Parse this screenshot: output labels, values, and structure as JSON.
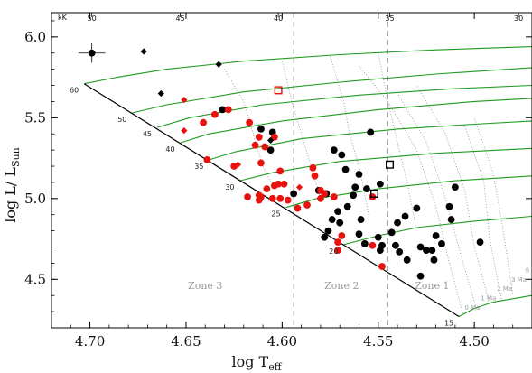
{
  "chart_data": {
    "type": "scatter",
    "xlabel": "log T",
    "xlabel_sub": "eff",
    "ylabel": "log L/ L",
    "ylabel_sub": "Sun",
    "xlim": [
      4.72,
      4.47
    ],
    "ylim": [
      4.2,
      6.15
    ],
    "x_ticks": [
      "4.70",
      "4.65",
      "4.60",
      "4.55",
      "4.50"
    ],
    "x_tick_values": [
      4.7,
      4.65,
      4.6,
      4.55,
      4.5
    ],
    "y_ticks": [
      "4.5",
      "5.0",
      "5.5",
      "6.0"
    ],
    "y_tick_values": [
      4.5,
      5.0,
      5.5,
      6.0
    ],
    "top_axis": {
      "unit_label": "kK",
      "ticks": [
        "50",
        "45",
        "40",
        "35",
        "30"
      ],
      "tick_values": [
        4.699,
        4.653,
        4.602,
        4.544,
        4.477
      ]
    },
    "zone_boundaries_x": [
      4.594,
      4.545
    ],
    "zones": [
      {
        "label": "Zone 3",
        "x": 4.64,
        "y": 4.44
      },
      {
        "label": "Zone 2",
        "x": 4.569,
        "y": 4.44
      },
      {
        "label": "Zone 1",
        "x": 4.522,
        "y": 4.44
      }
    ],
    "zams": [
      [
        4.703,
        5.71
      ],
      [
        4.508,
        4.27
      ]
    ],
    "tracks": [
      {
        "mass": "60",
        "points": [
          [
            4.703,
            5.71
          ],
          [
            4.686,
            5.75
          ],
          [
            4.66,
            5.8
          ],
          [
            4.62,
            5.85
          ],
          [
            4.57,
            5.89
          ],
          [
            4.52,
            5.92
          ],
          [
            4.47,
            5.94
          ]
        ]
      },
      {
        "mass": "50",
        "points": [
          [
            4.678,
            5.53
          ],
          [
            4.66,
            5.58
          ],
          [
            4.62,
            5.66
          ],
          [
            4.57,
            5.72
          ],
          [
            4.52,
            5.77
          ],
          [
            4.47,
            5.81
          ]
        ]
      },
      {
        "mass": "45",
        "points": [
          [
            4.665,
            5.44
          ],
          [
            4.648,
            5.5
          ],
          [
            4.61,
            5.58
          ],
          [
            4.56,
            5.64
          ],
          [
            4.51,
            5.68
          ],
          [
            4.47,
            5.7
          ]
        ]
      },
      {
        "mass": "40",
        "points": [
          [
            4.653,
            5.345
          ],
          [
            4.638,
            5.4
          ],
          [
            4.6,
            5.48
          ],
          [
            4.55,
            5.55
          ],
          [
            4.5,
            5.6
          ],
          [
            4.47,
            5.62
          ]
        ]
      },
      {
        "mass": "35",
        "points": [
          [
            4.638,
            5.24
          ],
          [
            4.624,
            5.29
          ],
          [
            4.59,
            5.37
          ],
          [
            4.54,
            5.43
          ],
          [
            4.5,
            5.46
          ],
          [
            4.47,
            5.48
          ]
        ]
      },
      {
        "mass": "30",
        "points": [
          [
            4.622,
            5.11
          ],
          [
            4.605,
            5.16
          ],
          [
            4.57,
            5.23
          ],
          [
            4.52,
            5.28
          ],
          [
            4.47,
            5.31
          ]
        ]
      },
      {
        "mass": "25",
        "points": [
          [
            4.598,
            4.945
          ],
          [
            4.582,
            5.0
          ],
          [
            4.55,
            5.06
          ],
          [
            4.51,
            5.11
          ],
          [
            4.47,
            5.14
          ]
        ]
      },
      {
        "mass": "20",
        "points": [
          [
            4.568,
            4.715
          ],
          [
            4.55,
            4.77
          ],
          [
            4.53,
            4.82
          ],
          [
            4.5,
            4.86
          ],
          [
            4.47,
            4.89
          ]
        ]
      },
      {
        "mass": "15",
        "points": [
          [
            4.508,
            4.27
          ],
          [
            4.5,
            4.32
          ],
          [
            4.49,
            4.36
          ],
          [
            4.48,
            4.38
          ],
          [
            4.47,
            4.4
          ]
        ]
      }
    ],
    "isochrones": [
      {
        "label": "0 Ma",
        "points": [
          [
            4.506,
            4.29
          ],
          [
            4.513,
            4.6
          ],
          [
            4.52,
            4.95
          ],
          [
            4.53,
            5.3
          ],
          [
            4.545,
            5.6
          ],
          [
            4.56,
            5.82
          ]
        ]
      },
      {
        "label": "1 Ma",
        "points": [
          [
            4.499,
            4.32
          ],
          [
            4.507,
            4.65
          ],
          [
            4.515,
            5.0
          ],
          [
            4.525,
            5.35
          ],
          [
            4.54,
            5.65
          ]
        ]
      },
      {
        "label": "2 Ma",
        "points": [
          [
            4.492,
            4.35
          ],
          [
            4.5,
            4.7
          ],
          [
            4.505,
            5.05
          ],
          [
            4.515,
            5.4
          ],
          [
            4.53,
            5.7
          ]
        ]
      },
      {
        "label": "3 Ma",
        "points": [
          [
            4.486,
            4.38
          ],
          [
            4.492,
            4.75
          ],
          [
            4.495,
            5.1
          ],
          [
            4.505,
            5.45
          ]
        ]
      },
      {
        "label": "6 Ma",
        "points": [
          [
            4.48,
            4.41
          ],
          [
            4.485,
            4.8
          ],
          [
            4.49,
            5.15
          ],
          [
            4.5,
            5.5
          ]
        ]
      },
      {
        "label": "",
        "points": [
          [
            4.63,
            5.8
          ],
          [
            4.62,
            5.6
          ],
          [
            4.615,
            5.4
          ],
          [
            4.61,
            5.2
          ],
          [
            4.605,
            5.08
          ]
        ]
      },
      {
        "label": "",
        "points": [
          [
            4.6,
            5.85
          ],
          [
            4.595,
            5.6
          ],
          [
            4.59,
            5.4
          ],
          [
            4.585,
            5.2
          ],
          [
            4.58,
            5.0
          ]
        ]
      },
      {
        "label": "",
        "points": [
          [
            4.575,
            5.88
          ],
          [
            4.568,
            5.6
          ],
          [
            4.565,
            5.4
          ],
          [
            4.56,
            5.2
          ],
          [
            4.555,
            4.9
          ]
        ]
      },
      {
        "label": "",
        "points": [
          [
            4.55,
            5.9
          ],
          [
            4.545,
            5.6
          ],
          [
            4.54,
            5.35
          ],
          [
            4.535,
            5.1
          ],
          [
            4.53,
            4.8
          ]
        ]
      }
    ],
    "series": [
      {
        "marker": "circle",
        "color": "#000000",
        "points": [
          [
            4.631,
            5.55
          ],
          [
            4.611,
            5.43
          ],
          [
            4.605,
            5.41
          ],
          [
            4.606,
            5.3
          ],
          [
            4.573,
            5.3
          ],
          [
            4.569,
            5.27
          ],
          [
            4.554,
            5.41
          ],
          [
            4.567,
            5.18
          ],
          [
            4.56,
            5.15
          ],
          [
            4.562,
            5.07
          ],
          [
            4.556,
            5.06
          ],
          [
            4.549,
            5.09
          ],
          [
            4.581,
            5.05
          ],
          [
            4.594,
            5.03
          ],
          [
            4.577,
            5.03
          ],
          [
            4.563,
            5.02
          ],
          [
            4.51,
            5.07
          ],
          [
            4.566,
            4.95
          ],
          [
            4.571,
            4.92
          ],
          [
            4.574,
            4.87
          ],
          [
            4.57,
            4.85
          ],
          [
            4.559,
            4.87
          ],
          [
            4.536,
            4.89
          ],
          [
            4.53,
            4.94
          ],
          [
            4.513,
            4.95
          ],
          [
            4.512,
            4.87
          ],
          [
            4.56,
            4.78
          ],
          [
            4.55,
            4.76
          ],
          [
            4.543,
            4.79
          ],
          [
            4.557,
            4.72
          ],
          [
            4.548,
            4.71
          ],
          [
            4.541,
            4.71
          ],
          [
            4.539,
            4.67
          ],
          [
            4.528,
            4.7
          ],
          [
            4.525,
            4.68
          ],
          [
            4.522,
            4.68
          ],
          [
            4.517,
            4.72
          ],
          [
            4.497,
            4.73
          ],
          [
            4.52,
            4.77
          ],
          [
            4.535,
            4.62
          ],
          [
            4.521,
            4.62
          ],
          [
            4.528,
            4.52
          ],
          [
            4.576,
            4.8
          ],
          [
            4.578,
            4.76
          ],
          [
            4.549,
            4.68
          ],
          [
            4.54,
            4.85
          ]
        ]
      },
      {
        "marker": "circle",
        "color": "#e8130f",
        "points": [
          [
            4.628,
            5.55
          ],
          [
            4.635,
            5.52
          ],
          [
            4.641,
            5.47
          ],
          [
            4.617,
            5.47
          ],
          [
            4.612,
            5.38
          ],
          [
            4.604,
            5.38
          ],
          [
            4.614,
            5.33
          ],
          [
            4.609,
            5.32
          ],
          [
            4.625,
            5.2
          ],
          [
            4.611,
            5.22
          ],
          [
            4.601,
            5.17
          ],
          [
            4.584,
            5.19
          ],
          [
            4.583,
            5.14
          ],
          [
            4.602,
            5.09
          ],
          [
            4.599,
            5.09
          ],
          [
            4.604,
            5.08
          ],
          [
            4.608,
            5.06
          ],
          [
            4.611,
            5.01
          ],
          [
            4.605,
            5.0
          ],
          [
            4.601,
            5.0
          ],
          [
            4.597,
            4.99
          ],
          [
            4.612,
            4.99
          ],
          [
            4.618,
            5.01
          ],
          [
            4.612,
            5.02
          ],
          [
            4.58,
            5.05
          ],
          [
            4.578,
            5.03
          ],
          [
            4.573,
            5.01
          ],
          [
            4.58,
            5.0
          ],
          [
            4.553,
            5.01
          ],
          [
            4.587,
            4.96
          ],
          [
            4.592,
            4.94
          ],
          [
            4.569,
            4.77
          ],
          [
            4.571,
            4.73
          ],
          [
            4.571,
            4.68
          ],
          [
            4.548,
            4.58
          ],
          [
            4.553,
            4.71
          ],
          [
            4.639,
            5.24
          ]
        ]
      },
      {
        "marker": "diamond",
        "color": "#000000",
        "points": [
          [
            4.672,
            5.91
          ],
          [
            4.633,
            5.83
          ],
          [
            4.663,
            5.65
          ],
          [
            4.606,
            5.36
          ]
        ]
      },
      {
        "marker": "diamond",
        "color": "#e8130f",
        "points": [
          [
            4.651,
            5.61
          ],
          [
            4.651,
            5.42
          ],
          [
            4.623,
            5.21
          ],
          [
            4.591,
            5.07
          ]
        ]
      },
      {
        "marker": "square",
        "color": "#e8130f",
        "points": [
          [
            4.602,
            5.67
          ]
        ]
      },
      {
        "marker": "square",
        "color": "#000000",
        "points": [
          [
            4.544,
            5.21
          ],
          [
            4.552,
            5.03
          ]
        ]
      }
    ],
    "error_point": {
      "x": 4.699,
      "y": 5.9,
      "xerr": 0.007,
      "yerr": 0.06
    },
    "grid": false,
    "legend": "none"
  }
}
